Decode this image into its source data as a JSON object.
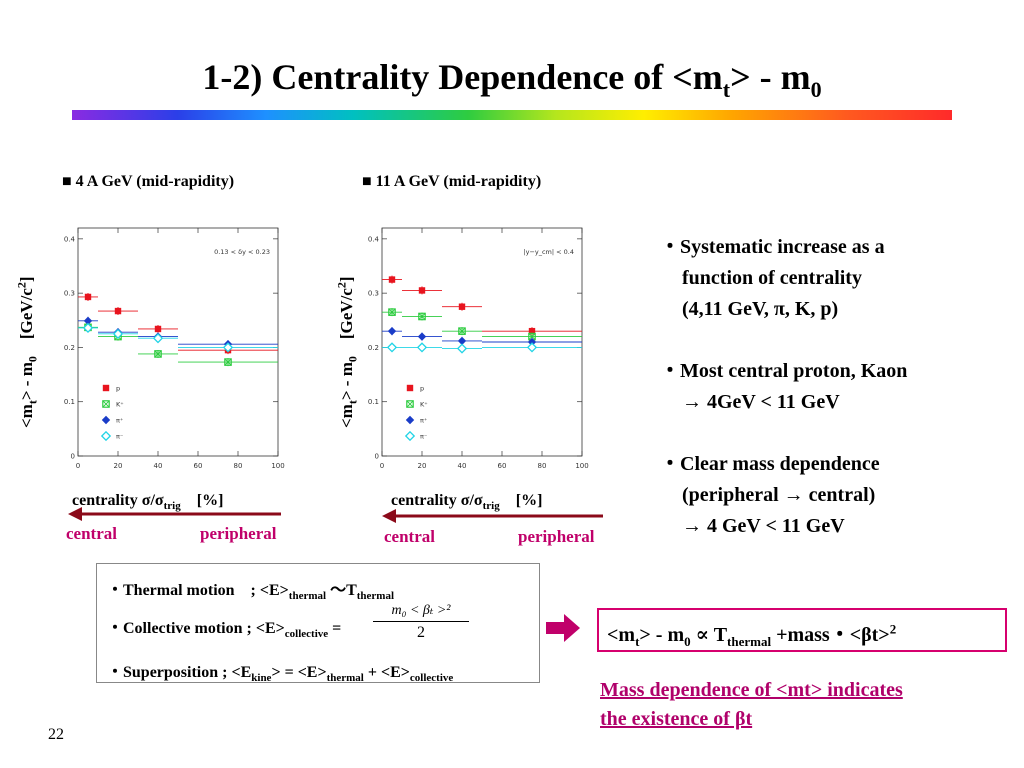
{
  "slide": {
    "title_pre": "1-2) Centrality Dependence of <m",
    "title_sub_t": "t",
    "title_mid": "> - m",
    "title_sub_0": "0",
    "page_number": "22"
  },
  "ylabel": {
    "pre": "<m",
    "sub": "t",
    "mid": "> - m",
    "sub0": "0",
    "unit": "[GeV/c",
    "sup": "2",
    "end": "]"
  },
  "xlabel": {
    "pre": "centrality σ/σ",
    "sub": "trig",
    "unit": "[%]"
  },
  "direction": {
    "central": "central",
    "peripheral": "peripheral"
  },
  "bullets": {
    "b1_l1": "・Systematic increase as a",
    "b1_l2": "function of centrality",
    "b1_l3": "(4,11 GeV, π, K, p)",
    "b2_l1": "・Most central proton, Kaon",
    "b2_l2": "→ 4GeV < 11 GeV",
    "b3_l1": "・Clear mass dependence",
    "b3_l2": "(peripheral → central)",
    "b3_l3": "→ 4 GeV < 11 GeV"
  },
  "formulas": {
    "l1_a": "・Thermal motion　; <E>",
    "l1_sub1": "thermal",
    "l1_b": " ～T",
    "l1_sub2": "thermal",
    "l2_a": "・Collective motion ; <E>",
    "l2_sub": "collective",
    "l2_eq": " =",
    "l2_num": "m₀ < βₜ >²",
    "l2_den": "2",
    "l3_a": "・Superposition ; <E",
    "l3_sub1": "kine",
    "l3_b": "> = <E>",
    "l3_sub2": "thermal",
    "l3_c": " + <E>",
    "l3_sub3": "collective"
  },
  "result": {
    "a": "<m",
    "sub_t": "t",
    "b": "> - m",
    "sub_0": "0",
    "c": " ∝ T",
    "sub_th": "thermal",
    "d": " +mass・<βt>",
    "sup": "2"
  },
  "conclusion": {
    "l1": "Mass dependence of <mt> indicates",
    "l2": "the existence of βt"
  },
  "colors": {
    "proton": "#e8141e",
    "kaon": "#2ecc40",
    "pi_plus": "#1a3cc8",
    "pi_minus": "#22d4e6",
    "arrow": "#8b0a1a",
    "accent": "#c0006a"
  },
  "chart_data": [
    {
      "type": "scatter",
      "heading": "■ 4 A GeV (mid-rapidity)",
      "annotation": "0.13 < δy < 0.23",
      "xlim": [
        0,
        100
      ],
      "ylim": [
        0,
        0.42
      ],
      "xticks": [
        "0",
        "20",
        "40",
        "60",
        "80",
        "100"
      ],
      "yticks": [
        "0",
        "0.1",
        "0.2",
        "0.3",
        "0.4"
      ],
      "legend": [
        "p",
        "K⁺",
        "π⁺",
        "π⁻"
      ],
      "series": [
        {
          "name": "p",
          "color": "#e8141e",
          "marker": "square",
          "points": [
            {
              "x": 5,
              "y": 0.293,
              "xlo": 0,
              "xhi": 10
            },
            {
              "x": 20,
              "y": 0.267,
              "xlo": 10,
              "xhi": 30
            },
            {
              "x": 40,
              "y": 0.234,
              "xlo": 30,
              "xhi": 50
            },
            {
              "x": 75,
              "y": 0.195,
              "xlo": 50,
              "xhi": 100
            }
          ]
        },
        {
          "name": "K⁺",
          "color": "#2ecc40",
          "marker": "xsquare",
          "points": [
            {
              "x": 5,
              "y": 0.237,
              "xlo": 0,
              "xhi": 10
            },
            {
              "x": 20,
              "y": 0.22,
              "xlo": 10,
              "xhi": 30
            },
            {
              "x": 40,
              "y": 0.188,
              "xlo": 30,
              "xhi": 50
            },
            {
              "x": 75,
              "y": 0.173,
              "xlo": 50,
              "xhi": 100
            }
          ]
        },
        {
          "name": "π⁺",
          "color": "#1a3cc8",
          "marker": "diamond",
          "points": [
            {
              "x": 5,
              "y": 0.249,
              "xlo": 0,
              "xhi": 10
            },
            {
              "x": 20,
              "y": 0.228,
              "xlo": 10,
              "xhi": 30
            },
            {
              "x": 40,
              "y": 0.22,
              "xlo": 30,
              "xhi": 50
            },
            {
              "x": 75,
              "y": 0.206,
              "xlo": 50,
              "xhi": 100
            }
          ]
        },
        {
          "name": "π⁻",
          "color": "#22d4e6",
          "marker": "odiamond",
          "points": [
            {
              "x": 5,
              "y": 0.236,
              "xlo": 0,
              "xhi": 10
            },
            {
              "x": 20,
              "y": 0.225,
              "xlo": 10,
              "xhi": 30
            },
            {
              "x": 40,
              "y": 0.217,
              "xlo": 30,
              "xhi": 50
            },
            {
              "x": 75,
              "y": 0.2,
              "xlo": 50,
              "xhi": 100
            }
          ]
        }
      ]
    },
    {
      "type": "scatter",
      "heading": "■ 11 A GeV (mid-rapidity)",
      "annotation": "|y−y_cm| < 0.4",
      "xlim": [
        0,
        100
      ],
      "ylim": [
        0,
        0.42
      ],
      "xticks": [
        "0",
        "20",
        "40",
        "60",
        "80",
        "100"
      ],
      "yticks": [
        "0",
        "0.1",
        "0.2",
        "0.3",
        "0.4"
      ],
      "legend": [
        "p",
        "K⁺",
        "π⁺",
        "π⁻"
      ],
      "series": [
        {
          "name": "p",
          "color": "#e8141e",
          "marker": "square",
          "points": [
            {
              "x": 5,
              "y": 0.325,
              "xlo": 0,
              "xhi": 10
            },
            {
              "x": 20,
              "y": 0.305,
              "xlo": 10,
              "xhi": 30
            },
            {
              "x": 40,
              "y": 0.275,
              "xlo": 30,
              "xhi": 50
            },
            {
              "x": 75,
              "y": 0.23,
              "xlo": 50,
              "xhi": 100
            }
          ]
        },
        {
          "name": "K⁺",
          "color": "#2ecc40",
          "marker": "xsquare",
          "points": [
            {
              "x": 5,
              "y": 0.265,
              "xlo": 0,
              "xhi": 10
            },
            {
              "x": 20,
              "y": 0.257,
              "xlo": 10,
              "xhi": 30
            },
            {
              "x": 40,
              "y": 0.23,
              "xlo": 30,
              "xhi": 50
            },
            {
              "x": 75,
              "y": 0.22,
              "xlo": 50,
              "xhi": 100
            }
          ]
        },
        {
          "name": "π⁺",
          "color": "#1a3cc8",
          "marker": "diamond",
          "points": [
            {
              "x": 5,
              "y": 0.23,
              "xlo": 0,
              "xhi": 10
            },
            {
              "x": 20,
              "y": 0.22,
              "xlo": 10,
              "xhi": 30
            },
            {
              "x": 40,
              "y": 0.212,
              "xlo": 30,
              "xhi": 50
            },
            {
              "x": 75,
              "y": 0.21,
              "xlo": 50,
              "xhi": 100
            }
          ]
        },
        {
          "name": "π⁻",
          "color": "#22d4e6",
          "marker": "odiamond",
          "points": [
            {
              "x": 5,
              "y": 0.2,
              "xlo": 0,
              "xhi": 10
            },
            {
              "x": 20,
              "y": 0.2,
              "xlo": 10,
              "xhi": 30
            },
            {
              "x": 40,
              "y": 0.198,
              "xlo": 30,
              "xhi": 50
            },
            {
              "x": 75,
              "y": 0.2,
              "xlo": 50,
              "xhi": 100
            }
          ]
        }
      ]
    }
  ]
}
